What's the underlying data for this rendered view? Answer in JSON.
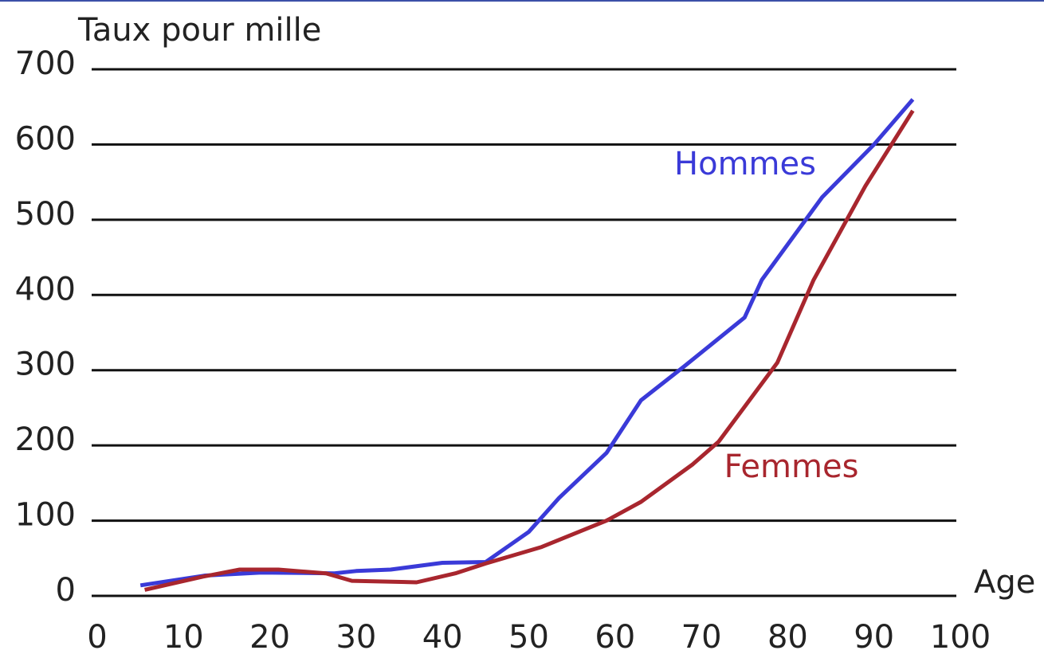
{
  "chart_data": {
    "type": "line",
    "y_label": "Taux pour mille",
    "x_label": "Age",
    "xlim": [
      0,
      100
    ],
    "xticks": [
      0,
      10,
      20,
      30,
      40,
      50,
      60,
      70,
      80,
      90,
      100
    ],
    "ylim": [
      0,
      700
    ],
    "yticks": [
      0,
      100,
      200,
      300,
      400,
      500,
      600,
      700
    ],
    "grid": true,
    "series": [
      {
        "name": "Hommes",
        "color": "#3a3ad8",
        "x": [
          5,
          12.5,
          19,
          27.5,
          30,
          34,
          40,
          45,
          50,
          53.5,
          59,
          63,
          68,
          75,
          77,
          84,
          90,
          94.5
        ],
        "values": [
          14,
          27,
          31,
          30,
          33,
          35,
          44,
          45,
          85,
          130,
          190,
          260,
          305,
          370,
          420,
          530,
          600,
          660
        ]
      },
      {
        "name": "Femmes",
        "color": "#a8262e",
        "x": [
          5.5,
          12,
          16.5,
          21,
          26.5,
          29.5,
          37,
          41.5,
          45,
          51.5,
          59,
          63,
          69,
          72,
          78.8,
          83,
          89,
          94.5
        ],
        "values": [
          8,
          25,
          35,
          35,
          30,
          20,
          18,
          30,
          43,
          65,
          100,
          125,
          175,
          205,
          310,
          420,
          545,
          645
        ]
      }
    ]
  }
}
